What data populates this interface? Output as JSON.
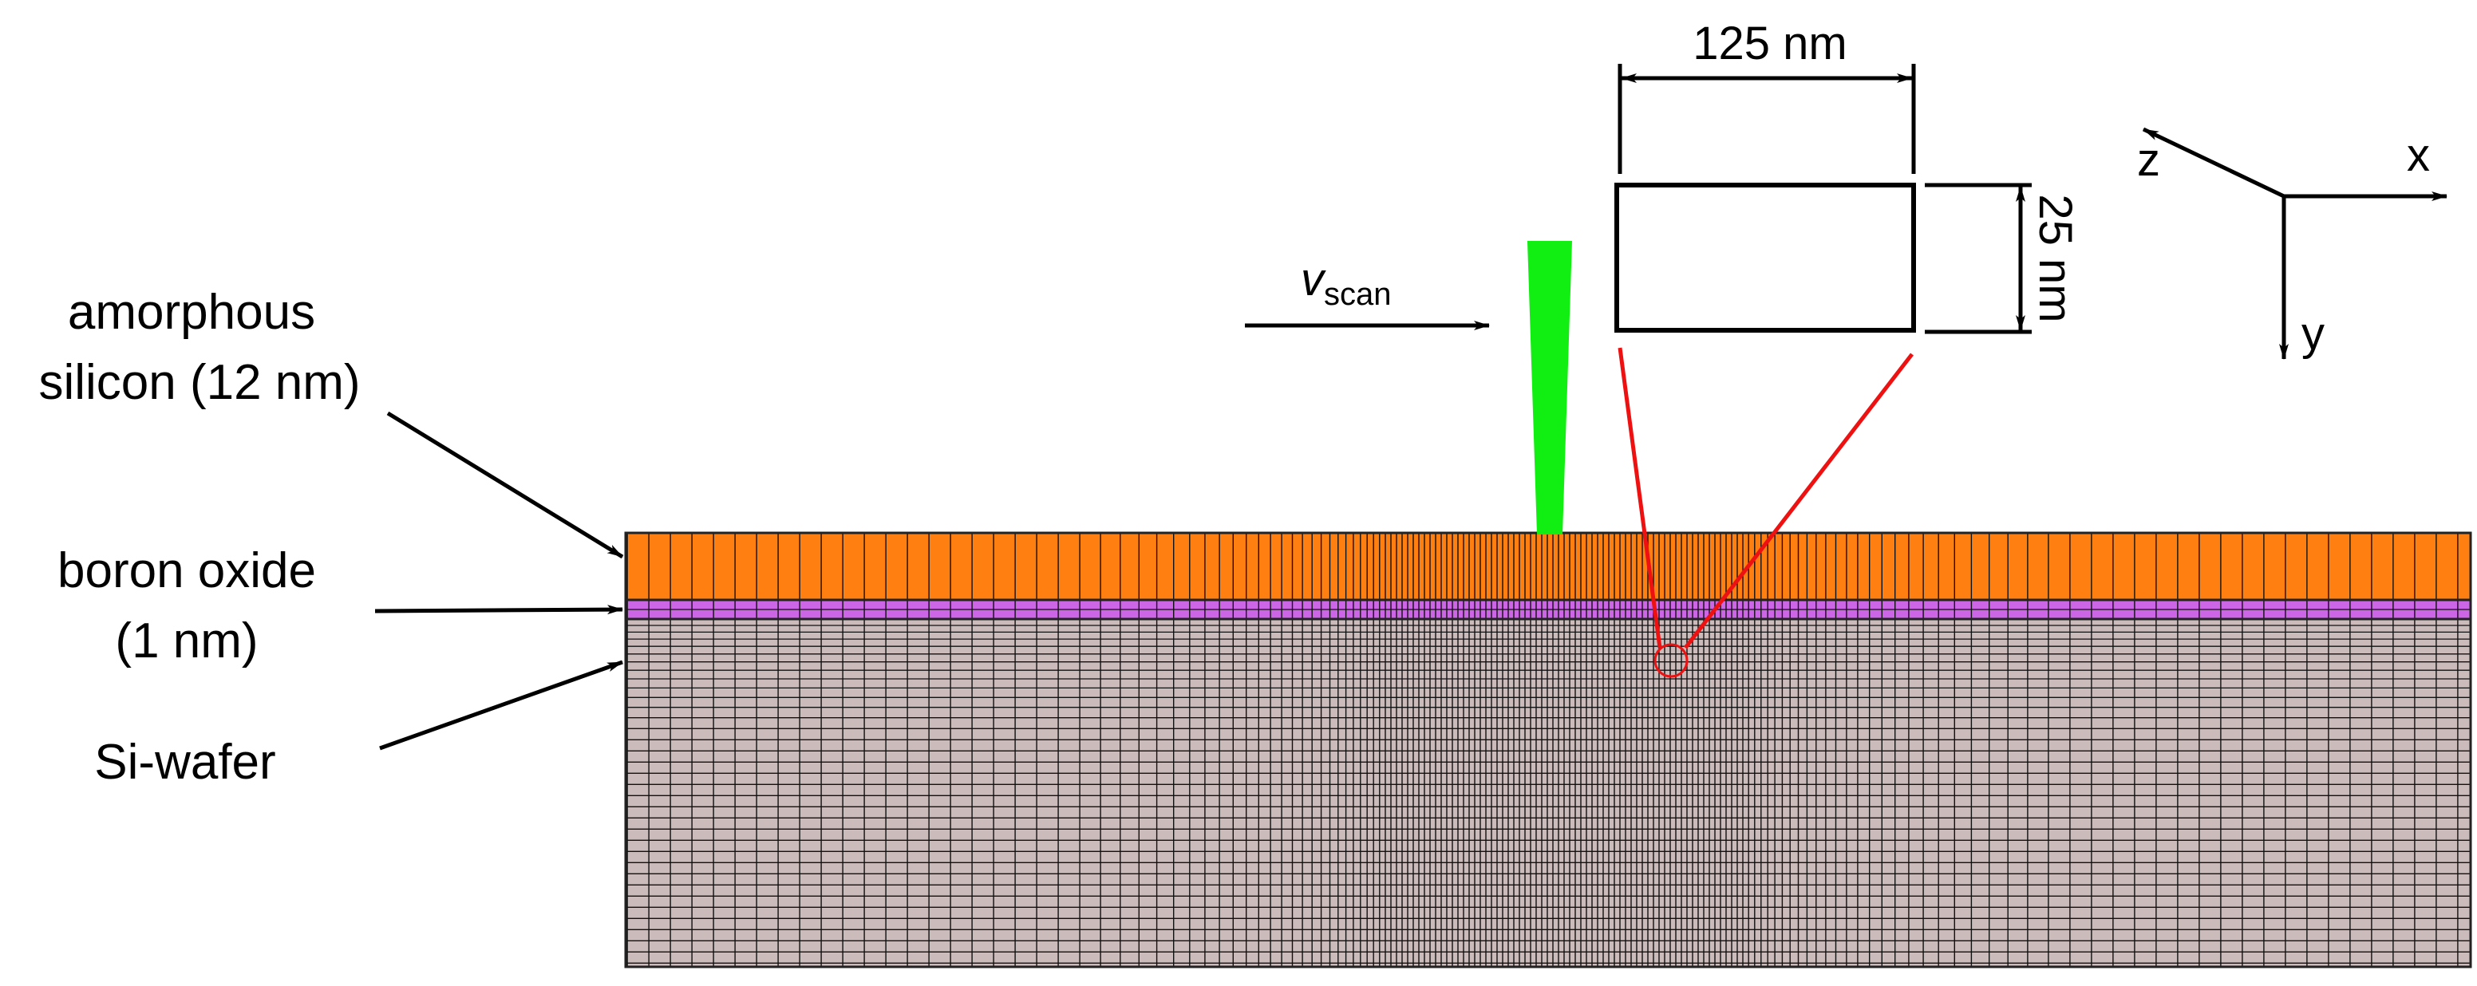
{
  "labels": {
    "amorphous_line1": "amorphous",
    "amorphous_line2": "silicon (12 nm)",
    "boron_line1": "boron oxide",
    "boron_line2": "(1 nm)",
    "wafer": "Si-wafer",
    "vscan_main": "v",
    "vscan_sub": "scan",
    "width_dim": "125 nm",
    "height_dim": "25 nm",
    "axis_x": "x",
    "axis_y": "y",
    "axis_z": "z"
  },
  "colors": {
    "amorphous_silicon": "#ff7f10",
    "boron_oxide": "#cc66e6",
    "si_wafer": "#cbbbbb",
    "laser_beam": "#11ee11",
    "zoom_lines": "#ee1111",
    "mesh_lines": "#111111"
  },
  "icons": {
    "axes": "coordinate-axes-icon",
    "laser": "laser-beam-icon"
  }
}
